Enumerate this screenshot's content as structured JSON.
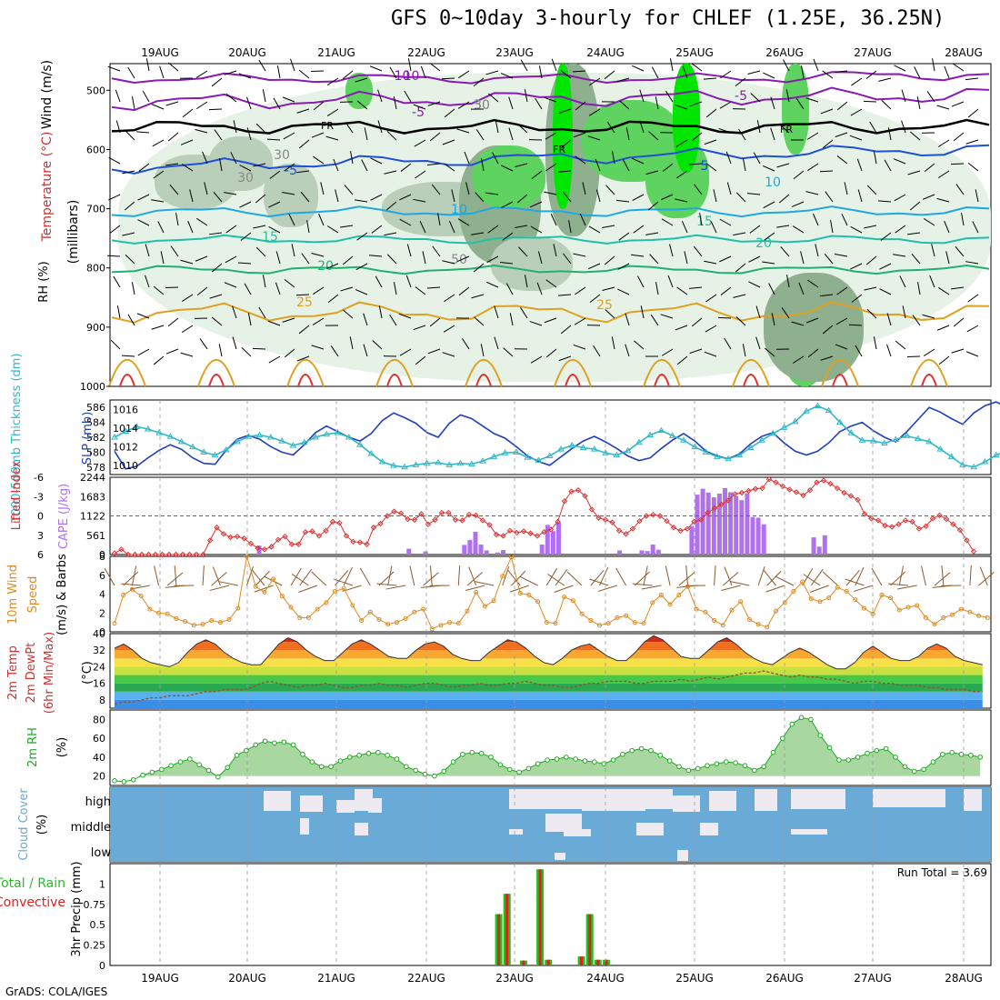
{
  "title": "GFS 0~10day 3-hourly for CHLEF (1.25E, 36.25N)",
  "credit": "GrADS: COLA/IGES",
  "dates": [
    "19AUG",
    "20AUG",
    "21AUG",
    "22AUG",
    "23AUG",
    "24AUG",
    "25AUG",
    "26AUG",
    "27AUG",
    "28AUG"
  ],
  "colors": {
    "rh_fill_light": "#e3f1e3",
    "rh_fill_mid": "#b9cfb9",
    "rh_fill_dark": "#8fb08f",
    "rh_green": "#5fd35f",
    "rh_bright": "#00e600",
    "temp_purple": "#8a1ab4",
    "temp_blue": "#1f4fd6",
    "temp_sky": "#20a8e0",
    "temp_teal": "#20c0a8",
    "temp_green": "#20b070",
    "temp_orange": "#e0a020",
    "temp_red": "#e03030",
    "slp": "#1f3fbf",
    "thickness": "#30b8c8",
    "lifted_index": "#e03030",
    "cape": "#b070f0",
    "wind": "#e08a20",
    "dewpt": "#8c5a2c",
    "rh2m": "#1faa1f",
    "cloud_bg": "#6aaad6",
    "cloud_fill": "#eeeaf2",
    "precip_total": "#20c020",
    "precip_conv": "#e02020"
  },
  "panels": {
    "upper": {
      "ylabel_wind": "Wind (m/s)",
      "ylabel_temp": "Temperature (°C)",
      "ylabel_rh": "RH (%)",
      "ylabel_mb": "(millibars)",
      "yticks": [
        "500",
        "600",
        "700",
        "800",
        "900",
        "1000"
      ],
      "contour_labels": [
        "-10",
        "-5",
        "FR",
        "FR",
        "FR",
        "-5",
        "-10",
        "5",
        "10",
        "15",
        "20",
        "25",
        "-5",
        "10",
        "15",
        "20",
        "25",
        "30",
        "50",
        "30",
        "30",
        "50",
        "10",
        "5"
      ]
    },
    "slp": {
      "ylabel_thick": "1000-500mb Thickness (dm)",
      "ylabel_slp": "SLP (mb)",
      "left_ticks": [
        "586",
        "584",
        "582",
        "580",
        "578"
      ],
      "right_ticks": [
        "1016",
        "1014",
        "1012",
        "1010"
      ]
    },
    "cape": {
      "ylabel_li": "Lifted Index",
      "ylabel_cape": "CAPE (J/kg)",
      "left_ticks": [
        "-6",
        "-3",
        "0",
        "3",
        "6"
      ],
      "right_ticks": [
        "2244",
        "1683",
        "1122",
        "561",
        "0"
      ]
    },
    "wind10": {
      "ylabel1": "10m Wind",
      "ylabel2": "Speed",
      "ylabel3": "(m/s) & Barbs",
      "ticks": [
        "8",
        "6",
        "4",
        "2",
        "0"
      ]
    },
    "temp2m": {
      "ylabel1": "2m Temp",
      "ylabel2": "2m DewPt",
      "ylabel3": "(6hr Min/Max)",
      "ylabel4": "(°C)",
      "ticks": [
        "40",
        "32",
        "24",
        "16",
        "8"
      ]
    },
    "rh2m": {
      "ylabel1": "2m RH",
      "ylabel2": "(%)",
      "ticks": [
        "80",
        "60",
        "40",
        "20"
      ]
    },
    "cloud": {
      "ylabel1": "Cloud Cover",
      "ylabel2": "(%)",
      "levels": [
        "high",
        "middle",
        "low"
      ]
    },
    "precip": {
      "ylabel1": "Total / Rain",
      "ylabel2": "Convective",
      "ylabel3": "3hr Precip (mm)",
      "ticks": [
        "1",
        "0.75",
        "0.5",
        "0.25",
        "0"
      ],
      "run_total": "Run Total = 3.69"
    }
  },
  "chart_data": [
    {
      "type": "line",
      "title": "GFS 0~10day 3-hourly for CHLEF (1.25E, 36.25N)",
      "xlabel": "",
      "ylabel": "SLP (mb) / 1000-500mb Thickness (dm)",
      "x_start": "18AUG 12Z",
      "x_step_hours": 3,
      "series": [
        {
          "name": "SLP (mb)",
          "ylim": [
            1009,
            1017
          ],
          "values": [
            1011.5,
            1009.6,
            1009.9,
            1010.8,
            1011.6,
            1012.2,
            1011.7,
            1010.8,
            1010.2,
            1010.1,
            1011.6,
            1012.8,
            1013.2,
            1012.8,
            1012.0,
            1011.4,
            1011.1,
            1012.2,
            1013.5,
            1014.2,
            1013.6,
            1013.0,
            1012.6,
            1013.4,
            1014.8,
            1015.6,
            1015.1,
            1014.5,
            1013.5,
            1013.0,
            1014.5,
            1015.4,
            1015.0,
            1014.2,
            1013.4,
            1012.9,
            1012.0,
            1011.0,
            1010.4,
            1010.0,
            1010.9,
            1011.8,
            1012.6,
            1013.1,
            1012.5,
            1011.8,
            1011.0,
            1010.5,
            1010.8,
            1011.8,
            1012.7,
            1013.4,
            1012.6,
            1011.5,
            1011.0,
            1010.7,
            1011.2,
            1012.3,
            1013.1,
            1013.5,
            1012.4,
            1011.5,
            1011.1,
            1011.5,
            1012.4,
            1013.6,
            1014.2,
            1014.6,
            1013.7,
            1013.0,
            1012.5,
            1013.6,
            1014.9,
            1016.2,
            1015.7,
            1015.0,
            1014.4,
            1015.6,
            1016.4,
            1016.8,
            1016.2,
            1015.6,
            1015.0,
            1014.4,
            1013.8,
            1013.0,
            1012.4,
            1012.3,
            1013.4,
            1014.2,
            1014.0,
            1013.4,
            1012.2,
            1011.7,
            1011.8,
            1012.6,
            1013.9
          ]
        },
        {
          "name": "1000-500mb Thickness (dm)",
          "ylim": [
            577,
            587
          ],
          "values": [
            582.0,
            582.8,
            583.4,
            583.1,
            582.6,
            582.1,
            581.4,
            580.7,
            580.0,
            579.6,
            580.3,
            581.4,
            582.1,
            582.3,
            582.0,
            581.5,
            580.9,
            581.3,
            582.0,
            582.4,
            582.6,
            582.0,
            581.0,
            579.8,
            578.7,
            578.2,
            578.0,
            578.3,
            578.5,
            578.6,
            578.3,
            578.5,
            578.4,
            578.8,
            579.4,
            579.9,
            580.0,
            579.3,
            578.9,
            579.5,
            580.4,
            580.9,
            580.6,
            580.4,
            579.9,
            579.6,
            580.2,
            581.3,
            582.3,
            582.9,
            582.2,
            581.6,
            580.7,
            580.0,
            579.4,
            579.1,
            579.6,
            580.6,
            581.6,
            582.5,
            583.3,
            584.1,
            585.5,
            586.2,
            585.6,
            584.0,
            582.6,
            581.6,
            581.5,
            581.2,
            581.7,
            582.2,
            581.8,
            581.4,
            580.4,
            579.4,
            578.3,
            578.0,
            578.7,
            579.6,
            580.2,
            580.9,
            581.1,
            581.0,
            580.6,
            580.2,
            580.1,
            579.9,
            579.5
          ]
        }
      ]
    },
    {
      "type": "bar",
      "ylabel": "CAPE (J/kg)",
      "ylim": [
        0,
        2244
      ],
      "x_start": "18AUG 12Z",
      "x_step_hours": 3,
      "values": [
        0,
        0,
        0,
        0,
        0,
        0,
        0,
        0,
        0,
        0,
        0,
        0,
        0,
        0,
        0,
        0,
        0,
        0,
        0,
        0,
        0,
        0,
        0,
        0,
        0,
        0,
        260,
        0,
        0,
        0,
        0,
        0,
        0,
        0,
        0,
        0,
        0,
        0,
        0,
        0,
        0,
        0,
        0,
        0,
        0,
        0,
        0,
        0,
        0,
        0,
        0,
        0,
        0,
        170,
        0,
        0,
        90,
        0,
        0,
        0,
        0,
        0,
        0,
        280,
        420,
        660,
        290,
        120,
        0,
        60,
        130,
        0,
        0,
        0,
        0,
        0,
        0,
        290,
        860,
        680,
        940,
        0,
        0,
        0,
        0,
        0,
        0,
        0,
        0,
        0,
        0,
        120,
        0,
        0,
        0,
        120,
        100,
        290,
        140,
        0,
        0,
        0,
        0,
        0,
        830,
        1740,
        1910,
        1800,
        1660,
        1770,
        1930,
        1810,
        1700,
        1580,
        1780,
        1090,
        1070,
        880,
        0,
        0,
        0,
        0,
        0,
        0,
        0,
        0,
        500,
        230,
        560,
        0,
        0,
        0,
        0
      ]
    },
    {
      "type": "line",
      "ylabel": "Lifted Index",
      "ylim": [
        6,
        -6
      ],
      "x_start": "18AUG 12Z",
      "x_step_hours": 3,
      "values": [
        5.8,
        5.2,
        6,
        6,
        6,
        6,
        6,
        6,
        6,
        6,
        6,
        6,
        6,
        6,
        3.8,
        1.8,
        2.8,
        3.3,
        3.2,
        3.5,
        4.3,
        5.0,
        5.2,
        4.8,
        3.7,
        3.2,
        4.4,
        4.4,
        2.5,
        2.4,
        3.1,
        2.3,
        0.9,
        1.1,
        3.1,
        4.0,
        4.1,
        4.4,
        1.8,
        1.2,
        0.0,
        -0.7,
        -0.4,
        0.5,
        0.6,
        -0.3,
        1.3,
        0.6,
        -0.5,
        -0.5,
        0.6,
        0.7,
        -0.2,
        -0.1,
        0.7,
        1.4,
        2.9,
        3.1,
        2.3,
        2.6,
        2.4,
        2.7,
        3.1,
        2.5,
        2.1,
        0.9,
        -2.3,
        -3.8,
        -4.0,
        -3.1,
        -1.0,
        0.3,
        0.6,
        1.0,
        2.3,
        2.8,
        2.0,
        0.8,
        0.0,
        -0.2,
        0.0,
        0.8,
        1.8,
        2.3,
        2.0,
        0.9,
        0.6,
        -0.5,
        -1.2,
        -1.8,
        -2.4,
        -3.4,
        -3.6,
        -3.9,
        -4.2,
        -4.3,
        -5.7,
        -5.2,
        -4.6,
        -4.1,
        -3.7,
        -3.2,
        -4.0,
        -5.2,
        -5.5,
        -5.0,
        -4.3,
        -3.6,
        -3.1,
        -2.5,
        -0.3,
        0.4,
        0.7,
        1.5,
        1.7,
        1.3,
        0.7,
        0.9,
        2.0,
        1.6,
        0.4,
        -0.1,
        0.5,
        1.3,
        2.2,
        3.8,
        5.5
      ]
    },
    {
      "type": "line",
      "ylabel": "10m Wind Speed (m/s)",
      "ylim": [
        0,
        8
      ],
      "x_start": "18AUG 12Z",
      "x_step_hours": 3,
      "values": [
        0.9,
        3.9,
        4.5,
        3.8,
        2.4,
        2.0,
        1.9,
        1.4,
        1.1,
        0.7,
        0.8,
        1.2,
        1.0,
        1.3,
        2.5,
        8.0,
        4.8,
        4.2,
        5.6,
        3.8,
        2.6,
        1.5,
        1.5,
        2.4,
        3.1,
        4.3,
        4.6,
        2.8,
        1.2,
        2.1,
        1.3,
        0.8,
        1.0,
        1.4,
        2.1,
        2.4,
        0.3,
        0.7,
        1.0,
        0.9,
        2.2,
        4.2,
        2.7,
        3.3,
        5.9,
        7.9,
        4.1,
        3.9,
        3.2,
        1.0,
        0.9,
        3.7,
        3.3,
        1.9,
        1.2,
        0.7,
        0.9,
        1.5,
        1.7,
        1.0,
        0.9,
        3.1,
        3.9,
        2.9,
        3.9,
        4.8,
        2.4,
        2.1,
        1.2,
        0.7,
        2.3,
        3.2,
        1.3,
        0.8,
        0.5,
        2.2,
        3.1,
        4.3,
        5.3,
        3.5,
        3.2,
        3.6,
        4.7,
        4.3,
        3.4,
        2.5,
        1.9,
        3.9,
        3.6,
        2.3,
        2.6,
        2.8,
        1.5,
        0.8,
        1.5,
        1.8,
        2.4,
        2.1,
        1.7,
        1.5
      ]
    },
    {
      "type": "area",
      "ylabel": "2m Temp (°C)",
      "ylim": [
        4,
        40
      ],
      "x_start": "18AUG 12Z",
      "x_step_hours": 3,
      "series": [
        {
          "name": "2m Temp",
          "values": [
            33,
            35,
            32,
            28,
            26,
            25,
            24,
            26,
            31,
            35,
            37,
            35,
            31,
            28,
            26,
            25,
            25,
            30,
            35,
            38,
            36,
            32,
            29,
            27,
            27,
            31,
            35,
            37,
            35,
            32,
            29,
            28,
            28,
            32,
            35,
            36,
            34,
            30,
            28,
            27,
            27,
            31,
            34,
            37,
            36,
            33,
            29,
            26,
            25,
            28,
            32,
            34,
            35,
            32,
            29,
            27,
            27,
            31,
            36,
            39,
            37,
            33,
            29,
            28,
            28,
            32,
            36,
            38,
            35,
            31,
            28,
            26,
            25,
            28,
            31,
            33,
            31,
            28,
            25,
            23,
            23,
            26,
            31,
            34,
            31,
            28,
            27,
            27,
            29,
            33,
            35,
            33,
            29,
            27,
            26,
            25
          ]
        },
        {
          "name": "2m DewPt",
          "values": [
            6,
            7,
            7,
            8,
            9,
            9,
            10,
            10,
            10,
            11,
            12,
            12,
            13,
            13,
            13,
            14,
            16,
            17,
            16,
            15,
            14,
            15,
            15,
            16,
            15,
            14,
            14,
            15,
            15,
            16,
            15,
            15,
            14,
            15,
            16,
            16,
            15,
            14,
            15,
            15,
            16,
            15,
            15,
            16,
            16,
            17,
            16,
            15,
            15,
            14,
            14,
            15,
            16,
            16,
            17,
            17,
            17,
            16,
            16,
            17,
            17,
            17,
            18,
            17,
            18,
            19,
            18,
            19,
            20,
            21,
            21,
            22,
            21,
            20,
            19,
            20,
            19,
            19,
            18,
            18,
            17,
            16,
            17,
            17,
            16,
            16,
            15,
            15,
            15,
            14,
            14,
            13,
            13,
            13,
            12,
            12
          ]
        }
      ]
    },
    {
      "type": "area",
      "ylabel": "2m RH (%)",
      "ylim": [
        10,
        90
      ],
      "x_start": "18AUG 12Z",
      "x_step_hours": 3,
      "values": [
        15,
        14,
        16,
        21,
        24,
        27,
        31,
        35,
        38,
        32,
        26,
        19,
        29,
        42,
        47,
        53,
        57,
        55,
        56,
        53,
        43,
        35,
        30,
        30,
        36,
        40,
        42,
        44,
        45,
        42,
        38,
        30,
        26,
        22,
        20,
        25,
        35,
        43,
        45,
        44,
        40,
        32,
        27,
        24,
        28,
        33,
        37,
        38,
        40,
        38,
        36,
        35,
        33,
        37,
        43,
        47,
        49,
        47,
        42,
        36,
        30,
        26,
        28,
        31,
        33,
        35,
        34,
        31,
        26,
        30,
        45,
        60,
        75,
        82,
        80,
        63,
        50,
        37,
        37,
        40,
        44,
        47,
        49,
        40,
        30,
        25,
        27,
        35,
        43,
        45,
        43,
        42,
        40
      ]
    },
    {
      "type": "bar",
      "ylabel": "3hr Precip (mm)",
      "ylim": [
        0,
        1.25
      ],
      "x_start": "18AUG 12Z",
      "x_step_hours": 3,
      "series": [
        {
          "name": "Total / Rain",
          "values": {
            "index_46": 0.63,
            "index_47": 0.88,
            "index_49": 0.06,
            "index_51": 1.18,
            "index_52": 0.07,
            "index_56": 0.11,
            "index_57": 0.63,
            "index_58": 0.07,
            "index_59": 0.07
          }
        },
        {
          "name": "Convective",
          "values": {
            "index_46": 0.63,
            "index_47": 0.88,
            "index_49": 0.06,
            "index_51": 1.18,
            "index_52": 0.07,
            "index_56": 0.11,
            "index_57": 0.63,
            "index_58": 0.07,
            "index_59": 0.07
          }
        }
      ]
    }
  ]
}
